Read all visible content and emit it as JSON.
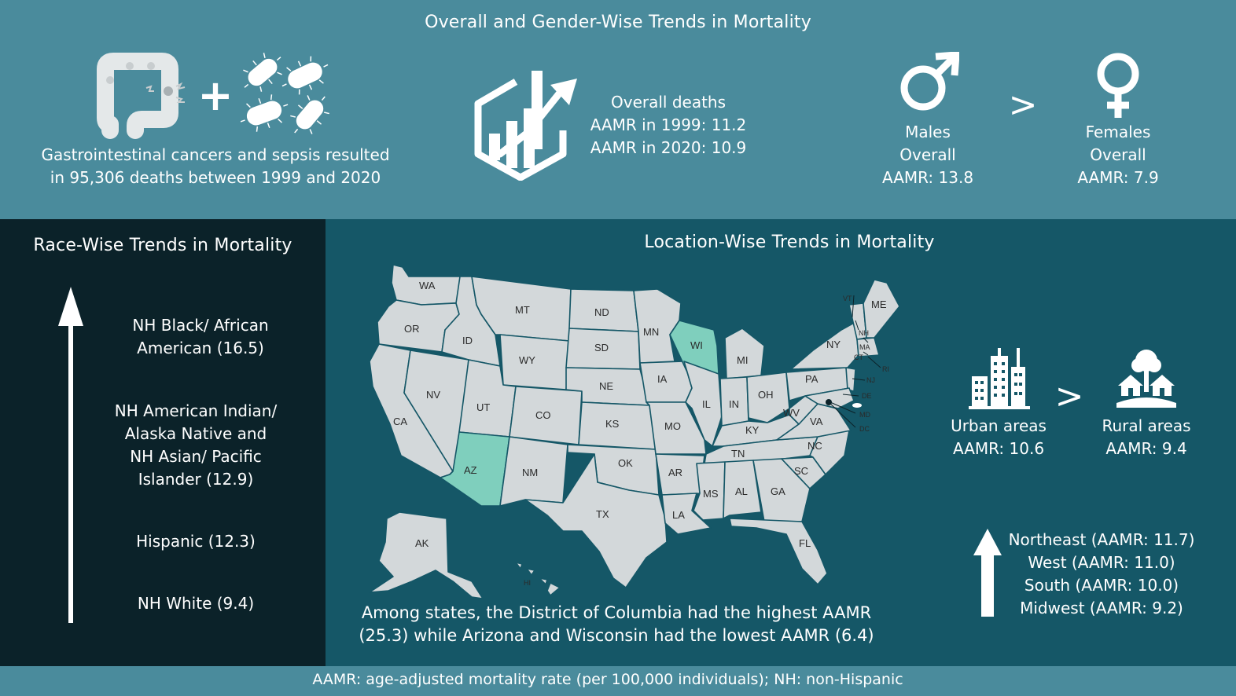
{
  "top": {
    "title": "Overall and Gender-Wise Trends in Mortality",
    "summary_line1": "Gastrointestinal cancers and sepsis resulted",
    "summary_line2": "in 95,306 deaths between 1999 and 2020",
    "overall_heading": "Overall deaths",
    "aamr_1999": "AAMR in 1999: 11.2",
    "aamr_2020": "AAMR in 2020: 10.9",
    "males_label": "Males",
    "males_overall": "Overall",
    "males_aamr": "AAMR: 13.8",
    "greater_sign": ">",
    "females_label": "Females",
    "females_overall": "Overall",
    "females_aamr": "AAMR: 7.9",
    "plus_sign": "+"
  },
  "race": {
    "title": "Race-Wise Trends in Mortality",
    "groups": [
      {
        "lines": [
          "NH Black/ African",
          "American (16.5)"
        ]
      },
      {
        "lines": [
          "NH American Indian/",
          "Alaska Native and",
          "NH Asian/ Pacific",
          "Islander (12.9)"
        ]
      },
      {
        "lines": [
          "Hispanic (12.3)"
        ]
      },
      {
        "lines": [
          "NH White (9.4)"
        ]
      }
    ]
  },
  "location": {
    "title": "Location-Wise Trends in Mortality",
    "urban_label": "Urban areas",
    "urban_aamr": "AAMR: 10.6",
    "rural_label": "Rural areas",
    "rural_aamr": "AAMR: 9.4",
    "greater_sign": ">",
    "regions": [
      "Northeast (AAMR: 11.7)",
      "West (AAMR: 11.0)",
      "South (AAMR: 10.0)",
      "Midwest (AAMR: 9.2)"
    ],
    "states_line1": "Among states, the District of Columbia had the highest AAMR",
    "states_line2": "(25.3) while Arizona and Wisconsin had the lowest AAMR (6.4)",
    "map_states": {
      "WA": "WA",
      "OR": "OR",
      "CA": "CA",
      "ID": "ID",
      "NV": "NV",
      "MT": "MT",
      "WY": "WY",
      "UT": "UT",
      "AZ": "AZ",
      "CO": "CO",
      "NM": "NM",
      "ND": "ND",
      "SD": "SD",
      "NE": "NE",
      "KS": "KS",
      "OK": "OK",
      "TX": "TX",
      "MN": "MN",
      "IA": "IA",
      "MO": "MO",
      "AR": "AR",
      "LA": "LA",
      "WI": "WI",
      "IL": "IL",
      "MI": "MI",
      "IN": "IN",
      "OH": "OH",
      "KY": "KY",
      "TN": "TN",
      "MS": "MS",
      "AL": "AL",
      "GA": "GA",
      "FL": "FL",
      "SC": "SC",
      "NC": "NC",
      "VA": "VA",
      "WV": "WV",
      "PA": "PA",
      "NY": "NY",
      "ME": "ME",
      "VT": "VT",
      "NH": "NH",
      "MA": "MA",
      "CT": "CT",
      "RI": "RI",
      "NJ": "NJ",
      "DE": "DE",
      "MD": "MD",
      "DC": "DC",
      "AK": "AK",
      "HI": "HI"
    },
    "highlight_color": "#7fcfbd",
    "map_color": "#d3d8da"
  },
  "footer": {
    "note": "AAMR: age-adjusted mortality rate (per 100,000 individuals); NH: non-Hispanic"
  },
  "colors": {
    "top_band": "#4a8b9c",
    "race_panel": "#0b2229",
    "location_panel": "#155767"
  }
}
